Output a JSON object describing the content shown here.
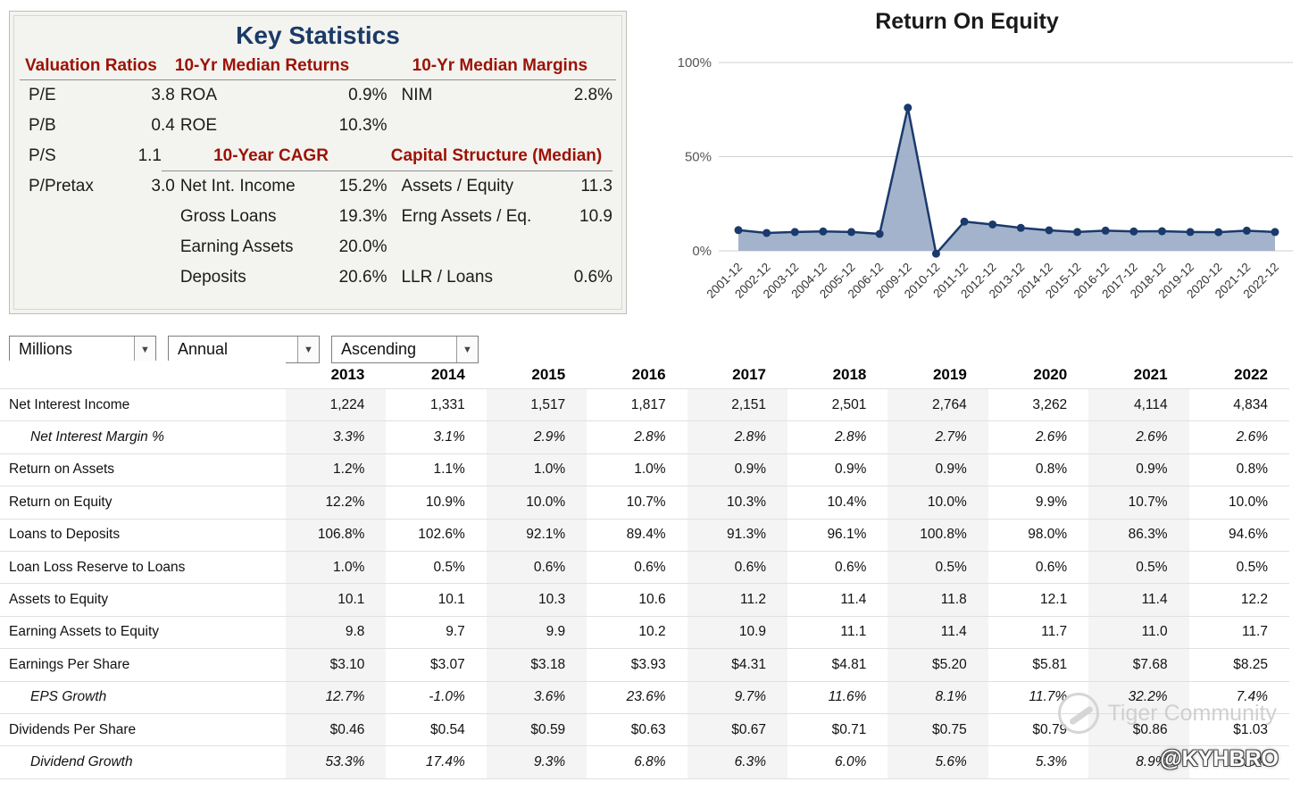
{
  "key_statistics": {
    "title": "Key Statistics",
    "col1_header": "Valuation Ratios",
    "col2_header": "10-Yr Median Returns",
    "col3_header": "10-Yr Median Margins",
    "cagr_header": "10-Year CAGR",
    "capital_header": "Capital Structure (Median)",
    "valuation": [
      {
        "label": "P/E",
        "value": "3.8"
      },
      {
        "label": "P/B",
        "value": "0.4"
      },
      {
        "label": "P/S",
        "value": "1.1"
      },
      {
        "label": "P/Pretax",
        "value": "3.0"
      }
    ],
    "returns": [
      {
        "label": "ROA",
        "value": "0.9%"
      },
      {
        "label": "ROE",
        "value": "10.3%"
      }
    ],
    "margins": [
      {
        "label": "NIM",
        "value": "2.8%"
      }
    ],
    "cagr": [
      {
        "label": "Net Int. Income",
        "value": "15.2%"
      },
      {
        "label": "Gross Loans",
        "value": "19.3%"
      },
      {
        "label": "Earning Assets",
        "value": "20.0%"
      },
      {
        "label": "Deposits",
        "value": "20.6%"
      }
    ],
    "capital": [
      {
        "label": "Assets / Equity",
        "value": "11.3"
      },
      {
        "label": "Erng Assets / Eq.",
        "value": "10.9"
      },
      {
        "label": "LLR / Loans",
        "value": "0.6%"
      }
    ]
  },
  "chart_data": {
    "type": "area",
    "title": "Return On Equity",
    "x": [
      "2001-12",
      "2002-12",
      "2003-12",
      "2004-12",
      "2005-12",
      "2006-12",
      "2009-12",
      "2010-12",
      "2011-12",
      "2012-12",
      "2013-12",
      "2014-12",
      "2015-12",
      "2016-12",
      "2017-12",
      "2018-12",
      "2019-12",
      "2020-12",
      "2021-12",
      "2022-12"
    ],
    "values": [
      11,
      9.5,
      10,
      10.3,
      10,
      9,
      76,
      -1.5,
      15.5,
      14,
      12.2,
      10.9,
      10.0,
      10.7,
      10.3,
      10.4,
      10.0,
      9.9,
      10.7,
      10.0
    ],
    "ylim": [
      0,
      100
    ],
    "yticks": [
      0,
      50,
      100
    ],
    "ytick_labels": [
      "0%",
      "50%",
      "100%"
    ],
    "grid": true,
    "legend": false,
    "line_color": "#1a3a6c",
    "fill_color": "#9aabc6"
  },
  "controls": {
    "units": "Millions",
    "period": "Annual",
    "sort": "Ascending"
  },
  "table": {
    "years": [
      "2013",
      "2014",
      "2015",
      "2016",
      "2017",
      "2018",
      "2019",
      "2020",
      "2021",
      "2022"
    ],
    "rows": [
      {
        "label": "Net Interest Income",
        "style": "normal",
        "values": [
          "1,224",
          "1,331",
          "1,517",
          "1,817",
          "2,151",
          "2,501",
          "2,764",
          "3,262",
          "4,114",
          "4,834"
        ]
      },
      {
        "label": "Net Interest Margin %",
        "style": "italic",
        "values": [
          "3.3%",
          "3.1%",
          "2.9%",
          "2.8%",
          "2.8%",
          "2.8%",
          "2.7%",
          "2.6%",
          "2.6%",
          "2.6%"
        ]
      },
      {
        "label": "Return on Assets",
        "style": "normal",
        "values": [
          "1.2%",
          "1.1%",
          "1.0%",
          "1.0%",
          "0.9%",
          "0.9%",
          "0.9%",
          "0.8%",
          "0.9%",
          "0.8%"
        ]
      },
      {
        "label": "Return on Equity",
        "style": "normal",
        "values": [
          "12.2%",
          "10.9%",
          "10.0%",
          "10.7%",
          "10.3%",
          "10.4%",
          "10.0%",
          "9.9%",
          "10.7%",
          "10.0%"
        ]
      },
      {
        "label": "Loans to Deposits",
        "style": "normal",
        "values": [
          "106.8%",
          "102.6%",
          "92.1%",
          "89.4%",
          "91.3%",
          "96.1%",
          "100.8%",
          "98.0%",
          "86.3%",
          "94.6%"
        ]
      },
      {
        "label": "Loan Loss Reserve to Loans",
        "style": "normal",
        "values": [
          "1.0%",
          "0.5%",
          "0.6%",
          "0.6%",
          "0.6%",
          "0.6%",
          "0.5%",
          "0.6%",
          "0.5%",
          "0.5%"
        ]
      },
      {
        "label": "Assets to Equity",
        "style": "normal",
        "values": [
          "10.1",
          "10.1",
          "10.3",
          "10.6",
          "11.2",
          "11.4",
          "11.8",
          "12.1",
          "11.4",
          "12.2"
        ]
      },
      {
        "label": "Earning Assets to Equity",
        "style": "normal",
        "values": [
          "9.8",
          "9.7",
          "9.9",
          "10.2",
          "10.9",
          "11.1",
          "11.4",
          "11.7",
          "11.0",
          "11.7"
        ]
      },
      {
        "label": "Earnings Per Share",
        "style": "normal",
        "values": [
          "$3.10",
          "$3.07",
          "$3.18",
          "$3.93",
          "$4.31",
          "$4.81",
          "$5.20",
          "$5.81",
          "$7.68",
          "$8.25"
        ]
      },
      {
        "label": "EPS Growth",
        "style": "italic",
        "values": [
          "12.7%",
          "-1.0%",
          "3.6%",
          "23.6%",
          "9.7%",
          "11.6%",
          "8.1%",
          "11.7%",
          "32.2%",
          "7.4%"
        ]
      },
      {
        "label": "Dividends Per Share",
        "style": "normal",
        "values": [
          "$0.46",
          "$0.54",
          "$0.59",
          "$0.63",
          "$0.67",
          "$0.71",
          "$0.75",
          "$0.79",
          "$0.86",
          "$1.03"
        ]
      },
      {
        "label": "Dividend Growth",
        "style": "italic",
        "values": [
          "53.3%",
          "17.4%",
          "9.3%",
          "6.8%",
          "6.3%",
          "6.0%",
          "5.6%",
          "5.3%",
          "8.9%",
          "19.8%"
        ]
      }
    ]
  },
  "watermark": {
    "community": "Tiger Community",
    "handle": "@KYHBRO"
  }
}
